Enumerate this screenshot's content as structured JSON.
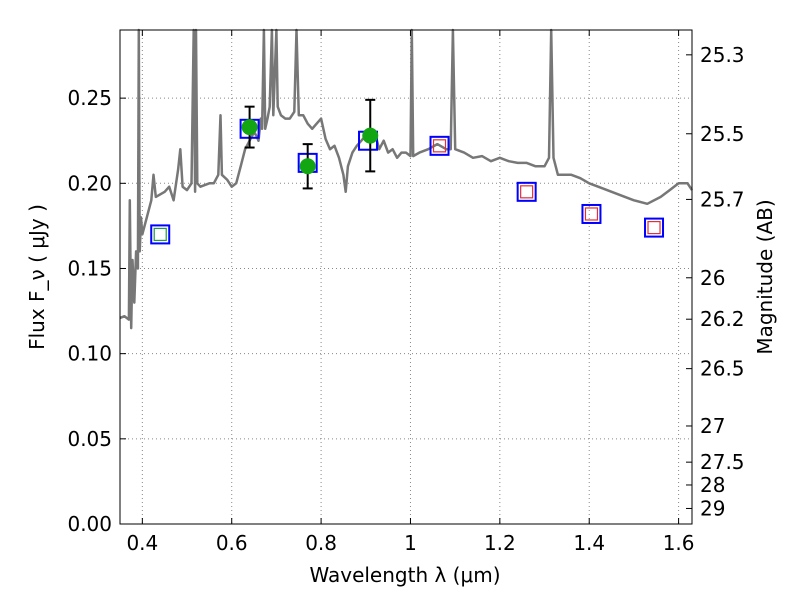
{
  "chart_data": {
    "type": "scatter",
    "xlabel": "Wavelength  λ (μm)",
    "ylabel": "Flux  F_ν  ( μJy )",
    "ylabel_right": "Magnitude (AB)",
    "xlim": [
      0.35,
      1.63
    ],
    "ylim": [
      0.0,
      0.29
    ],
    "grid": true,
    "x_ticks": [
      0.4,
      0.6,
      0.8,
      1.0,
      1.2,
      1.4,
      1.6
    ],
    "x_tick_labels": [
      "0.4",
      "0.6",
      "0.8",
      "1",
      "1.2",
      "1.4",
      "1.6"
    ],
    "y_ticks": [
      0.0,
      0.05,
      0.1,
      0.15,
      0.2,
      0.25
    ],
    "y_tick_labels": [
      "0.00",
      "0.05",
      "0.10",
      "0.15",
      "0.20",
      "0.25"
    ],
    "right_ticks": [
      {
        "mag": 25.3,
        "label": "25.3"
      },
      {
        "mag": 25.5,
        "label": "25.5"
      },
      {
        "mag": 25.7,
        "label": "25.7"
      },
      {
        "mag": 26.0,
        "label": "26"
      },
      {
        "mag": 26.2,
        "label": "26.2"
      },
      {
        "mag": 26.5,
        "label": "26.5"
      },
      {
        "mag": 27.0,
        "label": "27"
      },
      {
        "mag": 27.5,
        "label": "27.5"
      },
      {
        "mag": 28.0,
        "label": "28"
      },
      {
        "mag": 29.0,
        "label": "29"
      }
    ],
    "colors": {
      "spectrum": "#777777",
      "observed": "#13a613",
      "model_box": "#0000ff",
      "inner_red": "#e0303a",
      "inner_green": "#1f9a4a",
      "errorbar": "#000000",
      "grid": "#888888"
    },
    "series": [
      {
        "type": "line",
        "points": [
          [
            0.35,
            0.121
          ],
          [
            0.36,
            0.122
          ],
          [
            0.37,
            0.12
          ],
          [
            0.372,
            0.19
          ],
          [
            0.375,
            0.115
          ],
          [
            0.378,
            0.155
          ],
          [
            0.382,
            0.13
          ],
          [
            0.386,
            0.16
          ],
          [
            0.39,
            0.15
          ],
          [
            0.392,
            0.29
          ],
          [
            0.394,
            0.16
          ],
          [
            0.397,
            0.18
          ],
          [
            0.4,
            0.17
          ],
          [
            0.41,
            0.18
          ],
          [
            0.42,
            0.19
          ],
          [
            0.425,
            0.205
          ],
          [
            0.43,
            0.192
          ],
          [
            0.45,
            0.195
          ],
          [
            0.46,
            0.198
          ],
          [
            0.47,
            0.19
          ],
          [
            0.48,
            0.208
          ],
          [
            0.485,
            0.22
          ],
          [
            0.49,
            0.198
          ],
          [
            0.5,
            0.196
          ],
          [
            0.51,
            0.2
          ],
          [
            0.515,
            0.29
          ],
          [
            0.518,
            0.195
          ],
          [
            0.52,
            0.29
          ],
          [
            0.523,
            0.2
          ],
          [
            0.53,
            0.198
          ],
          [
            0.55,
            0.2
          ],
          [
            0.56,
            0.2
          ],
          [
            0.57,
            0.205
          ],
          [
            0.575,
            0.24
          ],
          [
            0.578,
            0.205
          ],
          [
            0.59,
            0.202
          ],
          [
            0.6,
            0.198
          ],
          [
            0.61,
            0.2
          ],
          [
            0.62,
            0.21
          ],
          [
            0.63,
            0.22
          ],
          [
            0.64,
            0.225
          ],
          [
            0.65,
            0.23
          ],
          [
            0.655,
            0.228
          ],
          [
            0.66,
            0.225
          ],
          [
            0.665,
            0.238
          ],
          [
            0.668,
            0.232
          ],
          [
            0.672,
            0.29
          ],
          [
            0.675,
            0.232
          ],
          [
            0.68,
            0.238
          ],
          [
            0.685,
            0.245
          ],
          [
            0.69,
            0.29
          ],
          [
            0.693,
            0.24
          ],
          [
            0.7,
            0.29
          ],
          [
            0.703,
            0.245
          ],
          [
            0.71,
            0.24
          ],
          [
            0.72,
            0.238
          ],
          [
            0.73,
            0.238
          ],
          [
            0.74,
            0.242
          ],
          [
            0.745,
            0.29
          ],
          [
            0.75,
            0.24
          ],
          [
            0.76,
            0.24
          ],
          [
            0.77,
            0.235
          ],
          [
            0.78,
            0.232
          ],
          [
            0.79,
            0.235
          ],
          [
            0.8,
            0.238
          ],
          [
            0.81,
            0.226
          ],
          [
            0.82,
            0.22
          ],
          [
            0.83,
            0.222
          ],
          [
            0.84,
            0.215
          ],
          [
            0.85,
            0.205
          ],
          [
            0.855,
            0.195
          ],
          [
            0.86,
            0.21
          ],
          [
            0.87,
            0.218
          ],
          [
            0.88,
            0.222
          ],
          [
            0.89,
            0.225
          ],
          [
            0.9,
            0.228
          ],
          [
            0.91,
            0.225
          ],
          [
            0.92,
            0.23
          ],
          [
            0.93,
            0.22
          ],
          [
            0.94,
            0.225
          ],
          [
            0.95,
            0.218
          ],
          [
            0.96,
            0.22
          ],
          [
            0.97,
            0.215
          ],
          [
            0.98,
            0.218
          ],
          [
            0.99,
            0.218
          ],
          [
            1.0,
            0.216
          ],
          [
            1.003,
            0.29
          ],
          [
            1.006,
            0.216
          ],
          [
            1.02,
            0.218
          ],
          [
            1.04,
            0.22
          ],
          [
            1.06,
            0.223
          ],
          [
            1.08,
            0.22
          ],
          [
            1.09,
            0.22
          ],
          [
            1.095,
            0.29
          ],
          [
            1.1,
            0.22
          ],
          [
            1.12,
            0.218
          ],
          [
            1.14,
            0.215
          ],
          [
            1.16,
            0.216
          ],
          [
            1.18,
            0.213
          ],
          [
            1.2,
            0.215
          ],
          [
            1.22,
            0.213
          ],
          [
            1.24,
            0.212
          ],
          [
            1.26,
            0.212
          ],
          [
            1.28,
            0.21
          ],
          [
            1.3,
            0.21
          ],
          [
            1.31,
            0.215
          ],
          [
            1.315,
            0.29
          ],
          [
            1.32,
            0.215
          ],
          [
            1.33,
            0.205
          ],
          [
            1.36,
            0.205
          ],
          [
            1.38,
            0.203
          ],
          [
            1.4,
            0.2
          ],
          [
            1.42,
            0.198
          ],
          [
            1.45,
            0.195
          ],
          [
            1.48,
            0.192
          ],
          [
            1.5,
            0.19
          ],
          [
            1.53,
            0.188
          ],
          [
            1.56,
            0.192
          ],
          [
            1.58,
            0.196
          ],
          [
            1.6,
            0.2
          ],
          [
            1.62,
            0.2
          ],
          [
            1.63,
            0.196
          ]
        ]
      },
      {
        "type": "scatter",
        "marker": "circle",
        "x": [
          0.64,
          0.77,
          0.91
        ],
        "y": [
          0.233,
          0.21,
          0.228
        ],
        "yerr": [
          0.012,
          0.013,
          0.021
        ]
      },
      {
        "type": "scatter",
        "marker": "square",
        "x": [
          0.44,
          0.64,
          0.77,
          0.905,
          1.065,
          1.26,
          1.405,
          1.545
        ],
        "y": [
          0.17,
          0.232,
          0.212,
          0.225,
          0.222,
          0.195,
          0.182,
          0.174
        ],
        "inner": [
          "green",
          "none",
          "none",
          "none",
          "red",
          "red",
          "red",
          "red"
        ]
      }
    ]
  }
}
